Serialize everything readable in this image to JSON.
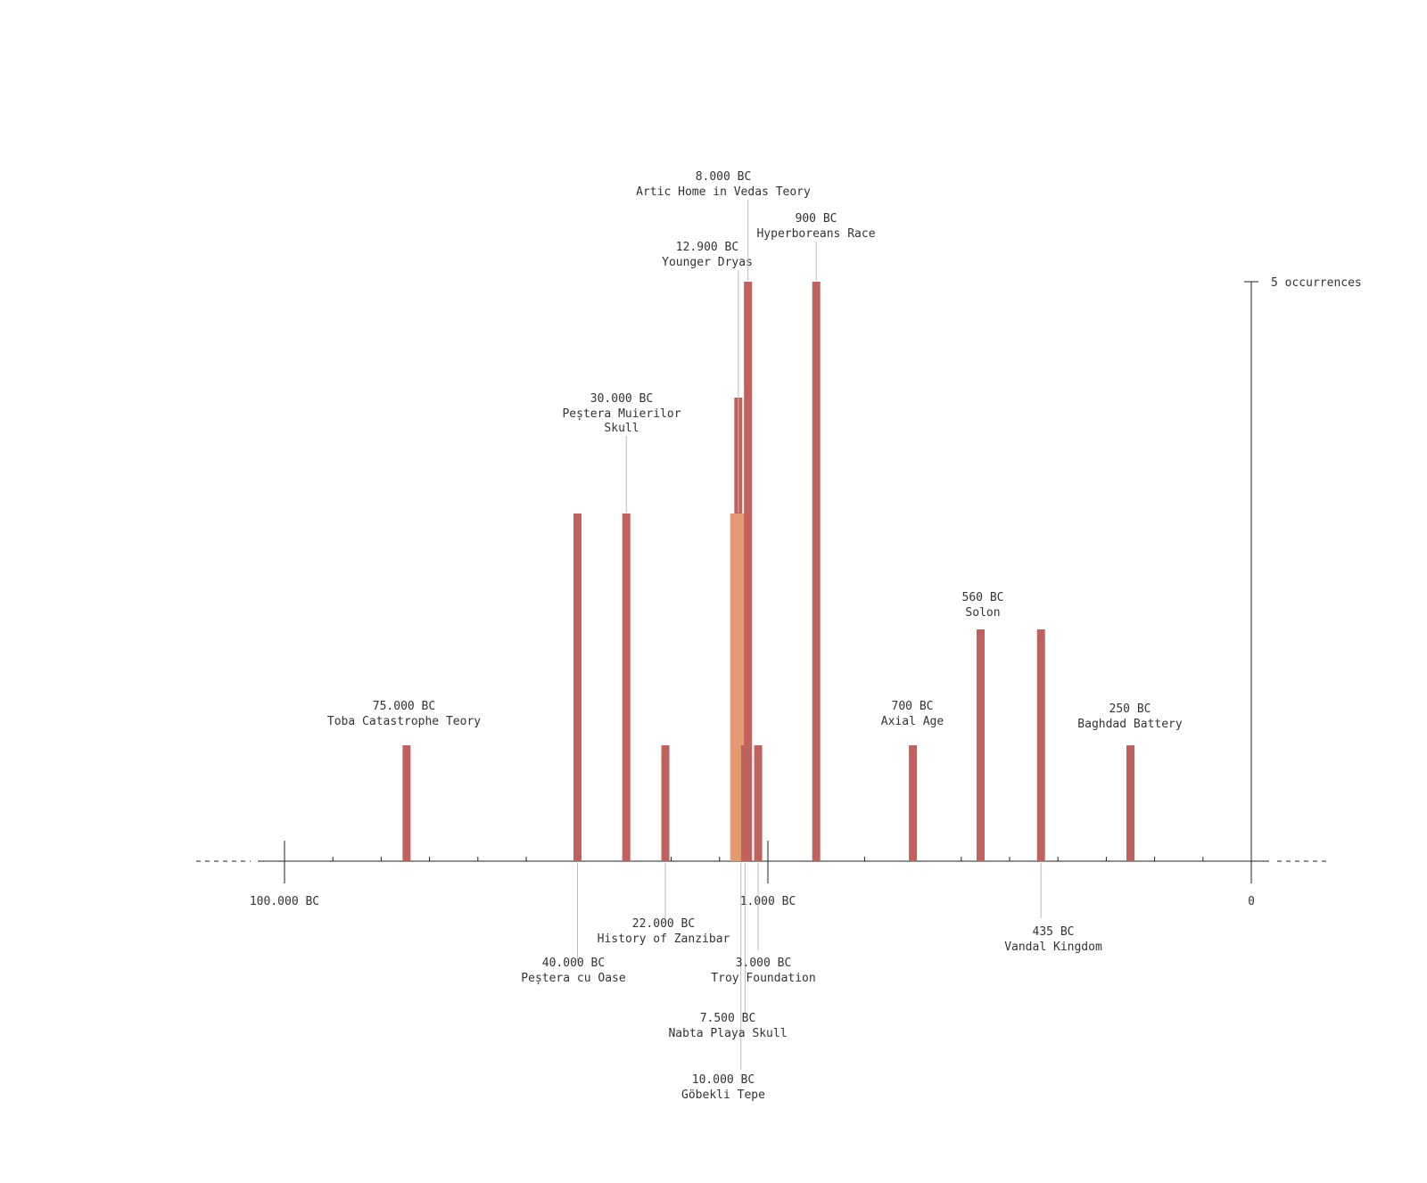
{
  "chart_data": {
    "type": "bar",
    "colors": {
      "bar": "#c0615e",
      "highlight": "#e39a72",
      "axis": "#222222",
      "leader": "#bbbbbb",
      "text": "#333333"
    },
    "x_axis": {
      "scale": "piecewise",
      "ticks": [
        {
          "value": -100000,
          "label": "100.000 BC"
        },
        {
          "value": -1000,
          "label": "1.000 BC"
        },
        {
          "value": 0,
          "label": "0"
        }
      ]
    },
    "y_axis": {
      "max": 5,
      "max_label": "5 occurrences"
    },
    "bars": [
      {
        "year": -75000,
        "count": 1,
        "date": "75.000 BC",
        "name": "Toba Catastrophe Teory",
        "label_pos": "above"
      },
      {
        "year": -40000,
        "count": 3,
        "date": "40.000 BC",
        "name": "Peștera cu Oase",
        "label_pos": "below"
      },
      {
        "year": -30000,
        "count": 3,
        "date": "30.000 BC",
        "name": "Peștera Muierilor Skull",
        "label_pos": "above"
      },
      {
        "year": -22000,
        "count": 1,
        "date": "22.000 BC",
        "name": "History of Zanzibar",
        "label_pos": "below"
      },
      {
        "year": -12900,
        "count": 4,
        "date": "12.900 BC",
        "name": "Younger Dryas",
        "label_pos": "above"
      },
      {
        "year": -10000,
        "count": 3,
        "date": "10.000 BC",
        "name": "Göbekli Tepe",
        "label_pos": "below",
        "highlight": true
      },
      {
        "year": -8000,
        "count": 5,
        "date": "8.000 BC",
        "name": "Artic Home in Vedas Teory",
        "label_pos": "above"
      },
      {
        "year": -7500,
        "count": 1,
        "date": "7.500 BC",
        "name": "Nabta Playa Skull",
        "label_pos": "below"
      },
      {
        "year": -3000,
        "count": 1,
        "date": "3.000 BC",
        "name": "Troy Foundation",
        "label_pos": "below"
      },
      {
        "year": -900,
        "count": 5,
        "date": "900 BC",
        "name": "Hyperboreans Race",
        "label_pos": "above"
      },
      {
        "year": -700,
        "count": 1,
        "date": "700 BC",
        "name": "Axial Age",
        "label_pos": "above"
      },
      {
        "year": -560,
        "count": 2,
        "date": "560 BC",
        "name": "Solon",
        "label_pos": "above"
      },
      {
        "year": -435,
        "count": 2,
        "date": "435 BC",
        "name": "Vandal Kingdom",
        "label_pos": "below"
      },
      {
        "year": -250,
        "count": 1,
        "date": "250 BC",
        "name": "Baghdad Battery",
        "label_pos": "above"
      }
    ]
  }
}
